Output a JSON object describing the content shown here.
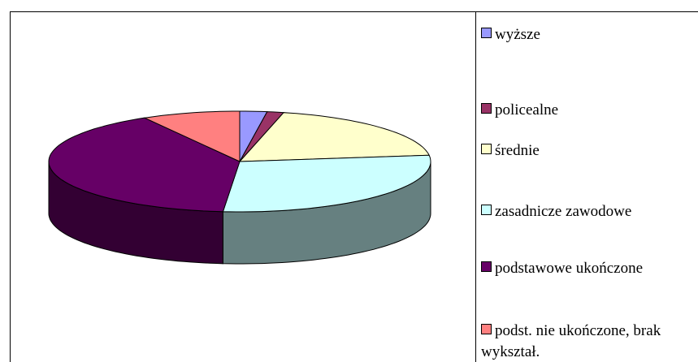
{
  "chart_data": {
    "type": "pie3d",
    "categories": [
      "wyższe",
      "policealne",
      "średnie",
      "zasadnicze zawodowe",
      "podstawowe ukończone",
      "podst. nie ukończone, brak wykształ."
    ],
    "values": [
      2.3,
      1.4,
      19.3,
      28.4,
      40.3,
      8.3
    ],
    "colors": [
      "#9999ff",
      "#993366",
      "#ffffcc",
      "#ccffff",
      "#660066",
      "#ff8080"
    ],
    "legend": "right"
  }
}
